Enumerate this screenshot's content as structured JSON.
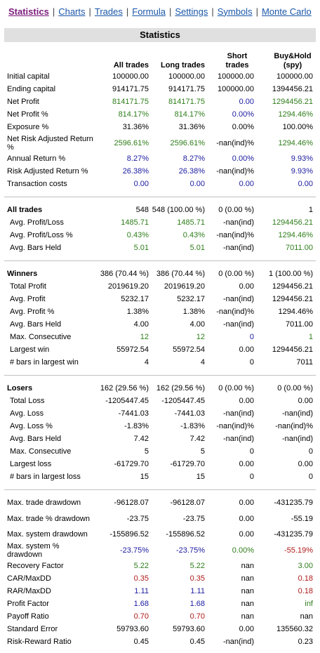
{
  "nav": {
    "items": [
      "Statistics",
      "Charts",
      "Trades",
      "Formula",
      "Settings",
      "Symbols",
      "Monte Carlo"
    ],
    "active": "Statistics"
  },
  "title": "Statistics",
  "columns": [
    "All trades",
    "Long trades",
    "Short trades",
    "Buy&Hold (spy)"
  ],
  "colors": {
    "green": "#2e7d1a",
    "blue": "#1a1aa0",
    "red": "#b01818",
    "header_bg": "#e0e0e0",
    "nav_link": "#1a57a8",
    "nav_active": "#7a1a7a"
  },
  "sections": [
    {
      "rows": [
        {
          "label": "Initial capital",
          "values": [
            "100000.00",
            "100000.00",
            "100000.00",
            "100000.00"
          ],
          "colors": [
            "k",
            "k",
            "k",
            "k"
          ]
        },
        {
          "label": "Ending capital",
          "values": [
            "914171.75",
            "914171.75",
            "100000.00",
            "1394456.21"
          ],
          "colors": [
            "k",
            "k",
            "k",
            "k"
          ]
        },
        {
          "label": "Net Profit",
          "values": [
            "814171.75",
            "814171.75",
            "0.00",
            "1294456.21"
          ],
          "colors": [
            "g",
            "g",
            "b",
            "g"
          ]
        },
        {
          "label": "Net Profit %",
          "values": [
            "814.17%",
            "814.17%",
            "0.00%",
            "1294.46%"
          ],
          "colors": [
            "g",
            "g",
            "b",
            "g"
          ]
        },
        {
          "label": "Exposure %",
          "values": [
            "31.36%",
            "31.36%",
            "0.00%",
            "100.00%"
          ],
          "colors": [
            "k",
            "k",
            "k",
            "k"
          ]
        },
        {
          "label": "Net Risk Adjusted Return %",
          "values": [
            "2596.61%",
            "2596.61%",
            "-nan(ind)%",
            "1294.46%"
          ],
          "colors": [
            "g",
            "g",
            "k",
            "g"
          ],
          "tall": true
        },
        {
          "label": "Annual Return %",
          "values": [
            "8.27%",
            "8.27%",
            "0.00%",
            "9.93%"
          ],
          "colors": [
            "b",
            "b",
            "b",
            "b"
          ]
        },
        {
          "label": "Risk Adjusted Return %",
          "values": [
            "26.38%",
            "26.38%",
            "-nan(ind)%",
            "9.93%"
          ],
          "colors": [
            "b",
            "b",
            "k",
            "b"
          ]
        },
        {
          "label": "Transaction costs",
          "values": [
            "0.00",
            "0.00",
            "0.00",
            "0.00"
          ],
          "colors": [
            "b",
            "b",
            "b",
            "b"
          ]
        }
      ]
    },
    {
      "rows": [
        {
          "label": "All trades",
          "values": [
            "548",
            "548 (100.00 %)",
            "0 (0.00 %)",
            "1"
          ],
          "colors": [
            "k",
            "k",
            "k",
            "k"
          ],
          "head": true
        },
        {
          "label": "Avg. Profit/Loss",
          "values": [
            "1485.71",
            "1485.71",
            "-nan(ind)",
            "1294456.21"
          ],
          "colors": [
            "g",
            "g",
            "k",
            "g"
          ],
          "sub": true
        },
        {
          "label": "Avg. Profit/Loss %",
          "values": [
            "0.43%",
            "0.43%",
            "-nan(ind)%",
            "1294.46%"
          ],
          "colors": [
            "g",
            "g",
            "k",
            "g"
          ],
          "sub": true
        },
        {
          "label": "Avg. Bars Held",
          "values": [
            "5.01",
            "5.01",
            "-nan(ind)",
            "7011.00"
          ],
          "colors": [
            "g",
            "g",
            "k",
            "g"
          ],
          "sub": true
        }
      ]
    },
    {
      "rows": [
        {
          "label": "Winners",
          "values": [
            "386 (70.44 %)",
            "386 (70.44 %)",
            "0 (0.00 %)",
            "1 (100.00 %)"
          ],
          "colors": [
            "k",
            "k",
            "k",
            "k"
          ],
          "head": true
        },
        {
          "label": "Total Profit",
          "values": [
            "2019619.20",
            "2019619.20",
            "0.00",
            "1294456.21"
          ],
          "colors": [
            "k",
            "k",
            "k",
            "k"
          ],
          "sub": true
        },
        {
          "label": "Avg. Profit",
          "values": [
            "5232.17",
            "5232.17",
            "-nan(ind)",
            "1294456.21"
          ],
          "colors": [
            "k",
            "k",
            "k",
            "k"
          ],
          "sub": true
        },
        {
          "label": "Avg. Profit %",
          "values": [
            "1.38%",
            "1.38%",
            "-nan(ind)%",
            "1294.46%"
          ],
          "colors": [
            "k",
            "k",
            "k",
            "k"
          ],
          "sub": true
        },
        {
          "label": "Avg. Bars Held",
          "values": [
            "4.00",
            "4.00",
            "-nan(ind)",
            "7011.00"
          ],
          "colors": [
            "k",
            "k",
            "k",
            "k"
          ],
          "sub": true
        },
        {
          "label": "Max. Consecutive",
          "values": [
            "12",
            "12",
            "0",
            "1"
          ],
          "colors": [
            "g",
            "g",
            "b",
            "g"
          ],
          "sub": true
        },
        {
          "label": "Largest win",
          "values": [
            "55972.54",
            "55972.54",
            "0.00",
            "1294456.21"
          ],
          "colors": [
            "k",
            "k",
            "k",
            "k"
          ],
          "sub": true
        },
        {
          "label": "# bars in largest win",
          "values": [
            "4",
            "4",
            "0",
            "7011"
          ],
          "colors": [
            "k",
            "k",
            "k",
            "k"
          ],
          "sub": true
        }
      ]
    },
    {
      "rows": [
        {
          "label": "Losers",
          "values": [
            "162 (29.56 %)",
            "162 (29.56 %)",
            "0 (0.00 %)",
            "0 (0.00 %)"
          ],
          "colors": [
            "k",
            "k",
            "k",
            "k"
          ],
          "head": true
        },
        {
          "label": "Total Loss",
          "values": [
            "-1205447.45",
            "-1205447.45",
            "0.00",
            "0.00"
          ],
          "colors": [
            "k",
            "k",
            "k",
            "k"
          ],
          "sub": true
        },
        {
          "label": "Avg. Loss",
          "values": [
            "-7441.03",
            "-7441.03",
            "-nan(ind)",
            "-nan(ind)"
          ],
          "colors": [
            "k",
            "k",
            "k",
            "k"
          ],
          "sub": true
        },
        {
          "label": "Avg. Loss %",
          "values": [
            "-1.83%",
            "-1.83%",
            "-nan(ind)%",
            "-nan(ind)%"
          ],
          "colors": [
            "k",
            "k",
            "k",
            "k"
          ],
          "sub": true
        },
        {
          "label": "Avg. Bars Held",
          "values": [
            "7.42",
            "7.42",
            "-nan(ind)",
            "-nan(ind)"
          ],
          "colors": [
            "k",
            "k",
            "k",
            "k"
          ],
          "sub": true
        },
        {
          "label": "Max. Consecutive",
          "values": [
            "5",
            "5",
            "0",
            "0"
          ],
          "colors": [
            "k",
            "k",
            "k",
            "k"
          ],
          "sub": true
        },
        {
          "label": "Largest loss",
          "values": [
            "-61729.70",
            "-61729.70",
            "0.00",
            "0.00"
          ],
          "colors": [
            "k",
            "k",
            "k",
            "k"
          ],
          "sub": true
        },
        {
          "label": "# bars in largest loss",
          "values": [
            "15",
            "15",
            "0",
            "0"
          ],
          "colors": [
            "k",
            "k",
            "k",
            "k"
          ],
          "sub": true
        }
      ]
    },
    {
      "rows": [
        {
          "label": "Max. trade drawdown",
          "values": [
            "-96128.07",
            "-96128.07",
            "0.00",
            "-431235.79"
          ],
          "colors": [
            "k",
            "k",
            "k",
            "k"
          ]
        },
        {
          "label": "Max. trade % drawdown",
          "values": [
            "-23.75",
            "-23.75",
            "0.00",
            "-55.19"
          ],
          "colors": [
            "k",
            "k",
            "k",
            "k"
          ],
          "tall": true
        },
        {
          "label": "Max. system drawdown",
          "values": [
            "-155896.52",
            "-155896.52",
            "0.00",
            "-431235.79"
          ],
          "colors": [
            "k",
            "k",
            "k",
            "k"
          ]
        },
        {
          "label": "Max. system % drawdown",
          "values": [
            "-23.75%",
            "-23.75%",
            "0.00%",
            "-55.19%"
          ],
          "colors": [
            "b",
            "b",
            "g",
            "r"
          ],
          "tall": true
        },
        {
          "label": "Recovery Factor",
          "values": [
            "5.22",
            "5.22",
            "nan",
            "3.00"
          ],
          "colors": [
            "g",
            "g",
            "k",
            "g"
          ]
        },
        {
          "label": "CAR/MaxDD",
          "values": [
            "0.35",
            "0.35",
            "nan",
            "0.18"
          ],
          "colors": [
            "r",
            "r",
            "k",
            "r"
          ]
        },
        {
          "label": "RAR/MaxDD",
          "values": [
            "1.11",
            "1.11",
            "nan",
            "0.18"
          ],
          "colors": [
            "b",
            "b",
            "k",
            "r"
          ]
        },
        {
          "label": "Profit Factor",
          "values": [
            "1.68",
            "1.68",
            "nan",
            "inf"
          ],
          "colors": [
            "b",
            "b",
            "k",
            "g"
          ]
        },
        {
          "label": "Payoff Ratio",
          "values": [
            "0.70",
            "0.70",
            "nan",
            "nan"
          ],
          "colors": [
            "r",
            "r",
            "k",
            "k"
          ]
        },
        {
          "label": "Standard Error",
          "values": [
            "59793.60",
            "59793.60",
            "0.00",
            "135560.32"
          ],
          "colors": [
            "k",
            "k",
            "k",
            "k"
          ]
        },
        {
          "label": "Risk-Reward Ratio",
          "values": [
            "0.45",
            "0.45",
            "-nan(ind)",
            "0.23"
          ],
          "colors": [
            "k",
            "k",
            "k",
            "k"
          ]
        }
      ]
    }
  ]
}
